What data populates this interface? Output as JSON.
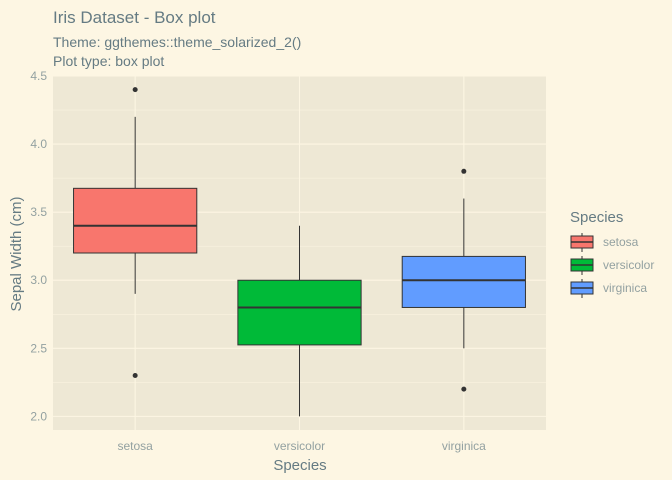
{
  "chart_data": {
    "type": "box",
    "title": "Iris Dataset - Box plot",
    "subtitle_lines": [
      "Theme: ggthemes::theme_solarized_2()",
      "Plot type: box plot"
    ],
    "xlabel": "Species",
    "ylabel": "Sepal Width (cm)",
    "ylim": [
      1.9,
      4.5
    ],
    "yticks": [
      "2.0",
      "2.5",
      "3.0",
      "3.5",
      "4.0",
      "4.5"
    ],
    "ytick_values": [
      2.0,
      2.5,
      3.0,
      3.5,
      4.0,
      4.5
    ],
    "grid": true,
    "legend_title": "Species",
    "legend_position": "right",
    "categories": [
      "setosa",
      "versicolor",
      "virginica"
    ],
    "series": [
      {
        "name": "setosa",
        "color": "#F8766D",
        "whisker_low": 2.9,
        "q1": 3.2,
        "median": 3.4,
        "q3": 3.675,
        "whisker_high": 4.2,
        "outliers": [
          2.3,
          4.4
        ]
      },
      {
        "name": "versicolor",
        "color": "#00BA38",
        "whisker_low": 2.0,
        "q1": 2.525,
        "median": 2.8,
        "q3": 3.0,
        "whisker_high": 3.4,
        "outliers": []
      },
      {
        "name": "virginica",
        "color": "#619CFF",
        "whisker_low": 2.5,
        "q1": 2.8,
        "median": 3.0,
        "q3": 3.175,
        "whisker_high": 3.6,
        "outliers": [
          2.2,
          3.8
        ]
      }
    ]
  },
  "colors": {
    "background": "#FDF6E3",
    "panel": "#EEE8D5",
    "grid": "#FDF6E3",
    "text": "#657B83",
    "tick_text": "#93A1A1",
    "outline": "#333333"
  }
}
